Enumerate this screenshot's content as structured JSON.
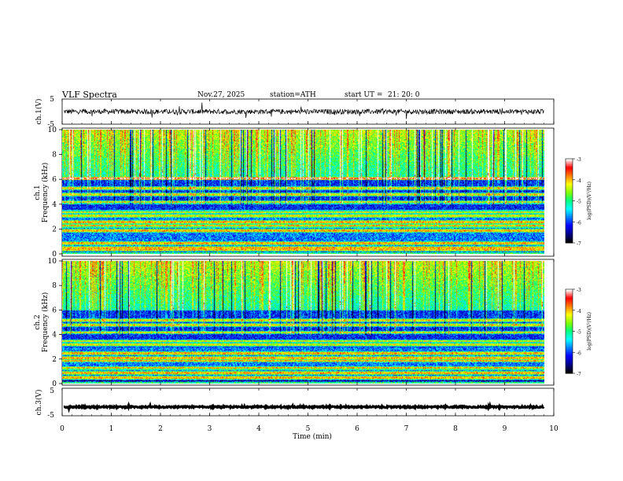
{
  "header": {
    "title": "VLF  Spectra",
    "date": "Nov.27, 2025",
    "station": "station=ATH",
    "start_label": "start  UT  =",
    "start_time": "21: 20: 0"
  },
  "chart_data": [
    {
      "type": "line",
      "id": "ch1_waveform",
      "ylabel": "ch.1(V)",
      "ylim": [
        -5,
        5
      ],
      "yticks": [
        5,
        -5
      ],
      "xlim": [
        0,
        10
      ],
      "series": [
        {
          "name": "ch.1 signal",
          "baseline": 0,
          "noise_amplitude": 1
        }
      ]
    },
    {
      "type": "heatmap",
      "id": "ch1_spectrogram",
      "ylabel": "ch.1 Frequency  (kHz)",
      "ylim": [
        0,
        10
      ],
      "yticks": [
        "0",
        "2",
        "4",
        "6",
        "8",
        "10"
      ],
      "xlim": [
        0,
        9.8
      ],
      "colorbar": {
        "label": "log(PSD)(V²/Hz)",
        "ticks": [
          "-3",
          "-4",
          "-5",
          "-6",
          "-7"
        ],
        "range": [
          -7,
          -3
        ],
        "colors": [
          "#000000",
          "#00008b",
          "#0000ff",
          "#0080ff",
          "#00ffff",
          "#00ff80",
          "#80ff00",
          "#ffff00",
          "#ff8000",
          "#ff0000",
          "#ffffff"
        ]
      },
      "bands_khz": [
        0.1,
        0.3,
        0.5,
        0.9,
        1.9,
        2.3,
        2.6,
        3.1,
        3.4,
        4.2,
        4.8,
        5.3,
        6.1
      ]
    },
    {
      "type": "heatmap",
      "id": "ch2_spectrogram",
      "ylabel": "ch.2 Frequency  (kHz)",
      "ylim": [
        0,
        10
      ],
      "yticks": [
        "0",
        "2",
        "4",
        "6",
        "8",
        "10"
      ],
      "xlim": [
        0,
        9.8
      ],
      "colorbar": {
        "label": "log(PSD)(V²/Hz)",
        "ticks": [
          "-3",
          "-4",
          "-5",
          "-6",
          "-7"
        ],
        "range": [
          -7,
          -3
        ],
        "colors": [
          "#000000",
          "#00008b",
          "#0000ff",
          "#0080ff",
          "#00ffff",
          "#00ff80",
          "#80ff00",
          "#ffff00",
          "#ff8000",
          "#ff0000",
          "#ffffff"
        ]
      },
      "bands_khz": [
        0.1,
        0.5,
        0.9,
        1.3,
        1.9,
        2.1,
        2.5,
        3.2,
        3.5,
        4.2,
        4.8,
        5.2
      ]
    },
    {
      "type": "line",
      "id": "ch3_waveform",
      "ylabel": "ch.3(V)",
      "ylim": [
        -5,
        5
      ],
      "yticks": [
        5,
        -5
      ],
      "xlim": [
        0,
        10
      ],
      "series": [
        {
          "name": "ch.3 signal",
          "baseline": -1.8,
          "noise_amplitude": 0.25
        }
      ]
    }
  ],
  "xaxis": {
    "label": "Time  (min)",
    "ticks": [
      "0",
      "1",
      "2",
      "3",
      "4",
      "5",
      "6",
      "7",
      "8",
      "9",
      "10"
    ],
    "range": [
      0,
      10
    ]
  }
}
